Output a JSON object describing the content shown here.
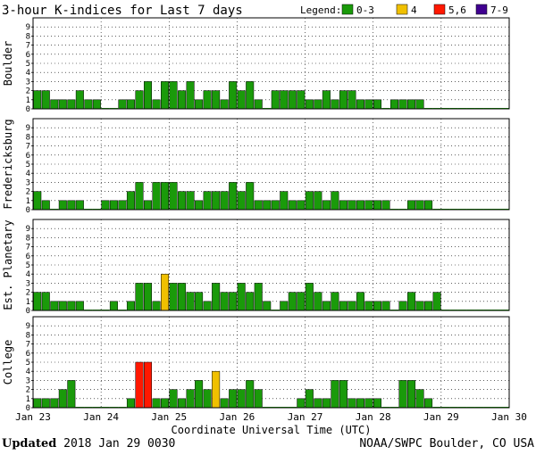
{
  "chart_data": {
    "type": "bar",
    "title": "3-hour K-indices for Last 7 days",
    "legend": {
      "label": "Legend:",
      "placement": "top-right",
      "entries": [
        {
          "label": "0-3",
          "color": "#1a9a0a"
        },
        {
          "label": "4",
          "color": "#f0c000"
        },
        {
          "label": "5,6",
          "color": "#ff1800"
        },
        {
          "label": "7-9",
          "color": "#400090"
        }
      ]
    },
    "xlabel": "Coordinate Universal Time (UTC)",
    "xticks": [
      "Jan 23",
      "Jan 24",
      "Jan 25",
      "Jan 26",
      "Jan 27",
      "Jan 28",
      "Jan 29",
      "Jan 30"
    ],
    "yticks": [
      "0",
      "1",
      "2",
      "3",
      "4",
      "5",
      "6",
      "7",
      "8",
      "9"
    ],
    "ylim": [
      0,
      9
    ],
    "grid": true,
    "series": [
      {
        "name": "Boulder",
        "values": [
          2,
          2,
          1,
          1,
          1,
          2,
          1,
          1,
          0,
          0,
          1,
          1,
          2,
          3,
          1,
          3,
          3,
          2,
          3,
          1,
          2,
          2,
          1,
          3,
          2,
          3,
          1,
          0,
          2,
          2,
          2,
          2,
          1,
          1,
          2,
          1,
          2,
          2,
          1,
          1,
          1,
          0,
          1,
          1,
          1,
          1,
          0,
          0,
          0,
          0,
          0,
          0,
          0,
          0,
          0,
          0
        ]
      },
      {
        "name": "Fredericksburg",
        "values": [
          2,
          1,
          0,
          1,
          1,
          1,
          0,
          0,
          1,
          1,
          1,
          2,
          3,
          1,
          3,
          3,
          3,
          2,
          2,
          1,
          2,
          2,
          2,
          3,
          2,
          3,
          1,
          1,
          1,
          2,
          1,
          1,
          2,
          2,
          1,
          2,
          1,
          1,
          1,
          1,
          1,
          1,
          0,
          0,
          1,
          1,
          1,
          0,
          0,
          0,
          0,
          0,
          0,
          0,
          0,
          0
        ]
      },
      {
        "name": "Est. Planetary",
        "values": [
          2,
          2,
          1,
          1,
          1,
          1,
          0,
          0,
          0,
          1,
          0,
          1,
          3,
          3,
          1,
          4,
          3,
          3,
          2,
          2,
          1,
          3,
          2,
          2,
          3,
          2,
          3,
          1,
          0,
          1,
          2,
          2,
          3,
          2,
          1,
          2,
          1,
          1,
          2,
          1,
          1,
          1,
          0,
          1,
          2,
          1,
          1,
          2,
          0,
          0,
          0,
          0,
          0,
          0,
          0,
          0
        ]
      },
      {
        "name": "College",
        "values": [
          1,
          1,
          1,
          2,
          3,
          0,
          0,
          0,
          0,
          0,
          0,
          1,
          5,
          5,
          1,
          1,
          2,
          1,
          2,
          3,
          2,
          4,
          1,
          2,
          2,
          3,
          2,
          0,
          0,
          0,
          0,
          1,
          2,
          1,
          1,
          3,
          3,
          1,
          1,
          1,
          1,
          0,
          0,
          3,
          3,
          2,
          1,
          0,
          0,
          0,
          0,
          0,
          0,
          0,
          0,
          0
        ]
      }
    ]
  },
  "footer": {
    "updated_label": "Updated",
    "updated_value": "2018 Jan 29 0030",
    "credit": "NOAA/SWPC Boulder, CO USA"
  }
}
